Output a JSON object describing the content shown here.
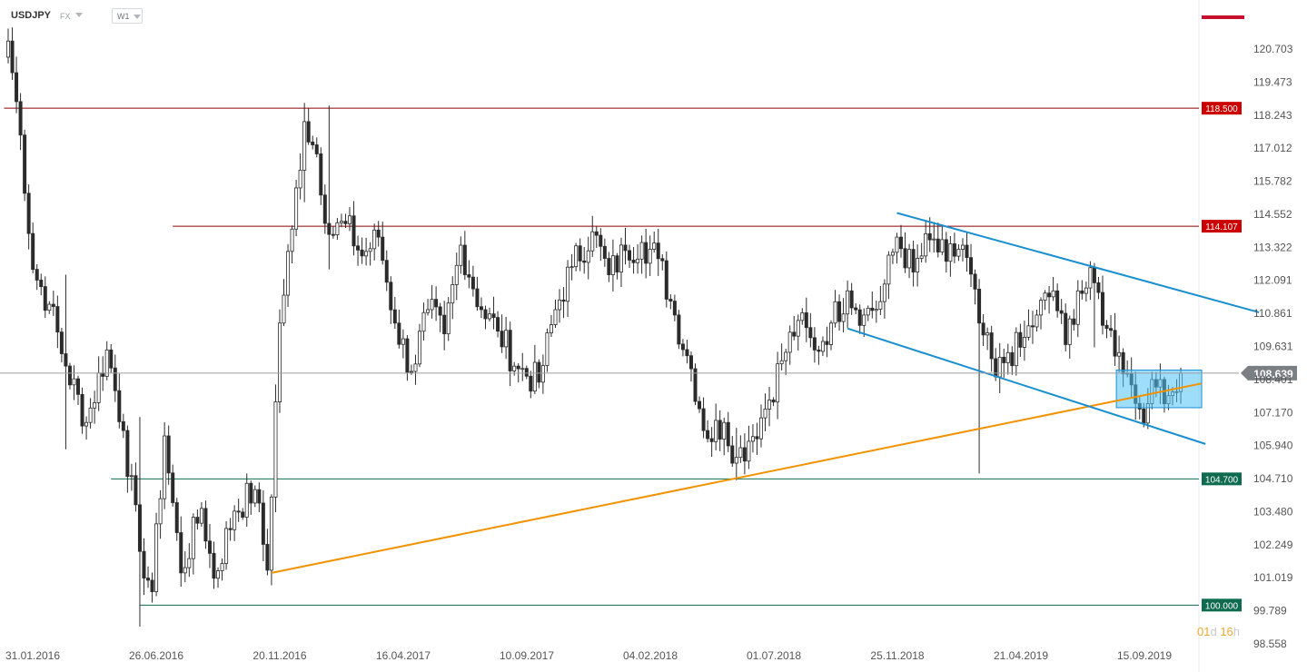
{
  "header": {
    "symbol": "USDJPY",
    "market": "FX",
    "timeframe": "W1"
  },
  "timer": {
    "days": "01",
    "day_unit": "d",
    "hours": "16",
    "hour_unit": "h"
  },
  "colors": {
    "bull_candle": "#ffffff",
    "bear_candle": "#2b2b2b",
    "resistance_line": "#8b0000",
    "support_line": "#0f6b4d",
    "uptrend_line": "#f39200",
    "channel_line": "#1a8fcf",
    "highlight_fill": "#4fc3f7",
    "accent": "#c8102e"
  },
  "chart_data": {
    "type": "candlestick",
    "y_axis": {
      "labels": [
        "120.703",
        "119.473",
        "118.243",
        "117.012",
        "115.782",
        "114.552",
        "113.322",
        "112.091",
        "110.861",
        "109.631",
        "108.401",
        "107.170",
        "105.940",
        "104.710",
        "103.480",
        "102.249",
        "101.019",
        "99.789",
        "98.558"
      ],
      "range": [
        98.558,
        121.5
      ]
    },
    "x_axis": {
      "labels": [
        "31.01.2016",
        "26.06.2016",
        "20.11.2016",
        "16.04.2017",
        "10.09.2017",
        "04.02.2018",
        "01.07.2018",
        "25.11.2018",
        "21.04.2019",
        "15.09.2019"
      ]
    },
    "current_price": {
      "value": 108.639,
      "label": "108.639"
    },
    "levels": [
      {
        "label": "118.500",
        "value": 118.5,
        "kind": "resistance",
        "start_week": -1
      },
      {
        "label": "114.107",
        "value": 114.107,
        "kind": "resistance",
        "start_week": 40
      },
      {
        "label": "104.700",
        "value": 104.7,
        "kind": "support",
        "start_week": 25
      },
      {
        "label": "100.000",
        "value": 100.0,
        "kind": "support",
        "start_week": 32
      }
    ],
    "trendlines": [
      {
        "kind": "uptrend",
        "from": {
          "week": 64,
          "price": 101.2
        },
        "to": {
          "week": 290,
          "price": 108.25
        }
      },
      {
        "kind": "channel-upper",
        "from": {
          "week": 216,
          "price": 114.6
        },
        "to": {
          "week": 304,
          "price": 110.9
        }
      },
      {
        "kind": "channel-lower",
        "from": {
          "week": 204,
          "price": 110.3
        },
        "to": {
          "week": 291,
          "price": 106.0
        }
      }
    ],
    "highlight_zone": {
      "start_week": 270,
      "end_week": 285,
      "high": 108.75,
      "low": 107.35
    },
    "anchors": [
      {
        "week": 0,
        "price": 121.0
      },
      {
        "week": 3,
        "price": 117.5
      },
      {
        "week": 6,
        "price": 112.5
      },
      {
        "week": 10,
        "price": 111.2
      },
      {
        "week": 14,
        "price": 108.9
      },
      {
        "week": 19,
        "price": 106.8
      },
      {
        "week": 24,
        "price": 109.5
      },
      {
        "week": 28,
        "price": 106.5
      },
      {
        "week": 32,
        "price": 102.0
      },
      {
        "week": 35,
        "price": 100.5
      },
      {
        "week": 38,
        "price": 106.3
      },
      {
        "week": 42,
        "price": 101.2
      },
      {
        "week": 47,
        "price": 103.6
      },
      {
        "week": 50,
        "price": 101.0
      },
      {
        "week": 55,
        "price": 103.5
      },
      {
        "week": 60,
        "price": 104.3
      },
      {
        "week": 63,
        "price": 101.3
      },
      {
        "week": 66,
        "price": 110.5
      },
      {
        "week": 69,
        "price": 114.0
      },
      {
        "week": 72,
        "price": 118.0
      },
      {
        "week": 75,
        "price": 116.8
      },
      {
        "week": 78,
        "price": 113.8
      },
      {
        "week": 82,
        "price": 114.2
      },
      {
        "week": 86,
        "price": 113.0
      },
      {
        "week": 90,
        "price": 113.7
      },
      {
        "week": 94,
        "price": 110.5
      },
      {
        "week": 98,
        "price": 108.7
      },
      {
        "week": 102,
        "price": 111.0
      },
      {
        "week": 106,
        "price": 110.1
      },
      {
        "week": 110,
        "price": 113.4
      },
      {
        "week": 115,
        "price": 111.0
      },
      {
        "week": 119,
        "price": 110.2
      },
      {
        "week": 124,
        "price": 108.8
      },
      {
        "week": 129,
        "price": 108.3
      },
      {
        "week": 133,
        "price": 111.0
      },
      {
        "week": 137,
        "price": 112.6
      },
      {
        "week": 142,
        "price": 113.9
      },
      {
        "week": 146,
        "price": 112.3
      },
      {
        "week": 150,
        "price": 113.2
      },
      {
        "week": 154,
        "price": 113.5
      },
      {
        "week": 158,
        "price": 112.9
      },
      {
        "week": 162,
        "price": 110.8
      },
      {
        "week": 166,
        "price": 108.8
      },
      {
        "week": 170,
        "price": 106.2
      },
      {
        "week": 174,
        "price": 106.8
      },
      {
        "week": 177,
        "price": 105.5
      },
      {
        "week": 180,
        "price": 106.1
      },
      {
        "week": 184,
        "price": 107.3
      },
      {
        "week": 188,
        "price": 109.1
      },
      {
        "week": 192,
        "price": 110.6
      },
      {
        "week": 196,
        "price": 109.5
      },
      {
        "week": 200,
        "price": 110.5
      },
      {
        "week": 204,
        "price": 111.7
      },
      {
        "week": 208,
        "price": 110.8
      },
      {
        "week": 212,
        "price": 111.3
      },
      {
        "week": 216,
        "price": 113.7
      },
      {
        "week": 220,
        "price": 112.4
      },
      {
        "week": 224,
        "price": 113.6
      },
      {
        "week": 228,
        "price": 112.8
      },
      {
        "week": 232,
        "price": 113.4
      },
      {
        "week": 236,
        "price": 110.5
      },
      {
        "week": 240,
        "price": 108.5
      },
      {
        "week": 243,
        "price": 109.4
      },
      {
        "week": 246,
        "price": 109.6
      },
      {
        "week": 250,
        "price": 110.8
      },
      {
        "week": 254,
        "price": 111.7
      },
      {
        "week": 257,
        "price": 109.7
      },
      {
        "week": 260,
        "price": 111.7
      },
      {
        "week": 264,
        "price": 112.0
      },
      {
        "week": 267,
        "price": 110.3
      },
      {
        "week": 270,
        "price": 109.4
      },
      {
        "week": 273,
        "price": 108.2
      },
      {
        "week": 275,
        "price": 107.3
      },
      {
        "week": 277,
        "price": 107.5
      },
      {
        "week": 280,
        "price": 108.4
      },
      {
        "week": 282,
        "price": 107.8
      },
      {
        "week": 285,
        "price": 108.64
      }
    ],
    "wick_extremes": [
      {
        "week": 14,
        "high": 112.3,
        "low": 105.8
      },
      {
        "week": 32,
        "high": 107.0,
        "low": 99.2
      },
      {
        "week": 72,
        "high": 118.7,
        "low": 115.0
      },
      {
        "week": 78,
        "high": 118.6,
        "low": 112.5
      },
      {
        "week": 177,
        "high": 106.6,
        "low": 104.65
      },
      {
        "week": 236,
        "high": 111.0,
        "low": 104.9
      },
      {
        "week": 264,
        "high": 112.4,
        "low": 109.6
      }
    ]
  }
}
